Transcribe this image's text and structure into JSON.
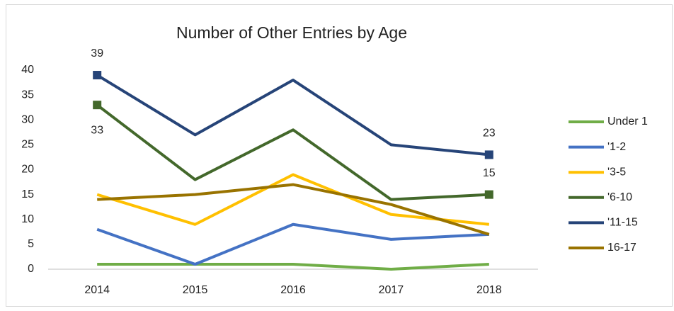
{
  "chart_data": {
    "type": "line",
    "title": "Number of Other Entries by Age",
    "categories": [
      "2014",
      "2015",
      "2016",
      "2017",
      "2018"
    ],
    "series": [
      {
        "name": "Under 1",
        "color": "#70ad47",
        "values": [
          1,
          1,
          1,
          0,
          1
        ]
      },
      {
        "name": "'1-2",
        "color": "#4472c4",
        "values": [
          8,
          1,
          9,
          6,
          7
        ]
      },
      {
        "name": "'3-5",
        "color": "#ffc000",
        "values": [
          15,
          9,
          19,
          11,
          9
        ]
      },
      {
        "name": "'6-10",
        "color": "#43682b",
        "values": [
          33,
          18,
          28,
          14,
          15
        ],
        "labeled": [
          0,
          4
        ]
      },
      {
        "name": "'11-15",
        "color": "#264478",
        "values": [
          39,
          27,
          38,
          25,
          23
        ],
        "labeled": [
          0,
          4
        ]
      },
      {
        "name": "16-17",
        "color": "#997300",
        "values": [
          14,
          15,
          17,
          13,
          7
        ]
      }
    ],
    "ylim": [
      0,
      40
    ],
    "yticks": [
      0,
      5,
      10,
      15,
      20,
      25,
      30,
      35,
      40
    ],
    "grid": false,
    "legend": "right"
  }
}
